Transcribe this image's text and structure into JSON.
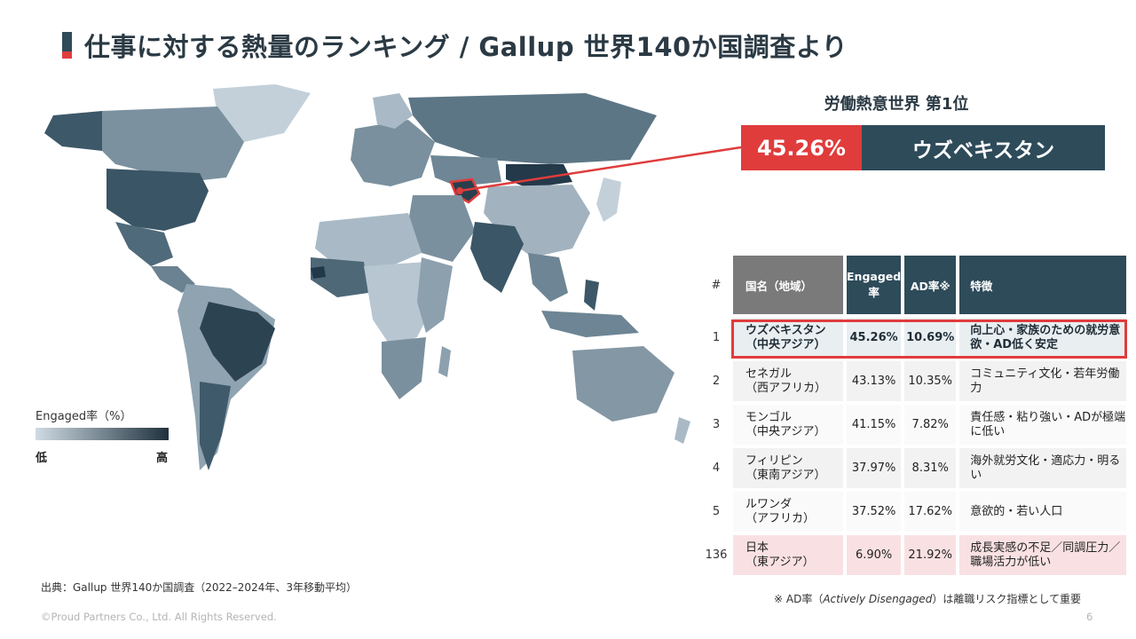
{
  "title": "仕事に対する熱量のランキング / Gallup 世界140か国調査より",
  "legend": {
    "label": "Engaged率（%）",
    "low": "低",
    "high": "高"
  },
  "top_rank": {
    "caption": "労働熱意世界 第1位",
    "percent": "45.26%",
    "country": "ウズベキスタン"
  },
  "table": {
    "headers": {
      "rank": "#",
      "name": "国名（地域）",
      "engaged": "Engaged率",
      "ad": "AD率※",
      "feature": "特徴"
    },
    "rows": [
      {
        "rank": "1",
        "name": "ウズベキスタン",
        "region": "（中央アジア）",
        "engaged": "45.26%",
        "ad": "10.69%",
        "feature": "向上心・家族のための就労意欲・AD低く安定"
      },
      {
        "rank": "2",
        "name": "セネガル",
        "region": "（西アフリカ）",
        "engaged": "43.13%",
        "ad": "10.35%",
        "feature": "コミュニティ文化・若年労働力"
      },
      {
        "rank": "3",
        "name": "モンゴル",
        "region": "（中央アジア）",
        "engaged": "41.15%",
        "ad": "7.82%",
        "feature": "責任感・粘り強い・ADが極端に低い"
      },
      {
        "rank": "4",
        "name": "フィリピン",
        "region": "（東南アジア）",
        "engaged": "37.97%",
        "ad": "8.31%",
        "feature": "海外就労文化・適応力・明るい"
      },
      {
        "rank": "5",
        "name": "ルワンダ",
        "region": "（アフリカ）",
        "engaged": "37.52%",
        "ad": "17.62%",
        "feature": "意欲的・若い人口"
      },
      {
        "rank": "136",
        "name": "日本",
        "region": "（東アジア）",
        "engaged": "6.90%",
        "ad": "21.92%",
        "feature": "成長実感の不足／同調圧力／職場活力が低い"
      }
    ]
  },
  "source": "出典：Gallup 世界140か国調査（2022–2024年、3年移動平均）",
  "note_prefix": "※ AD率（",
  "note_term": "Actively Disengaged",
  "note_suffix": "）は離職リスク指標として重要",
  "copyright": "©Proud Partners Co., Ltd. All Rights Reserved.",
  "page_number": "6",
  "colors": {
    "accent_red": "#e03c3c",
    "dark_teal": "#2e4b5a",
    "map_light": "#cfdbe4",
    "map_dark": "#1f313d"
  }
}
